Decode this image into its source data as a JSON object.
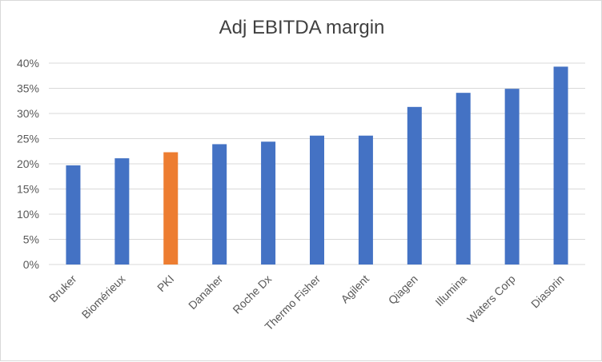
{
  "chart_data": {
    "type": "bar",
    "title": "Adj EBITDA margin",
    "xlabel": "",
    "ylabel": "",
    "categories": [
      "Bruker",
      "Biomérieux",
      "PKI",
      "Danaher",
      "Roche Dx",
      "Thermo Fisher",
      "Agilent",
      "Qiagen",
      "Illumina",
      "Waters Corp",
      "Diasorin"
    ],
    "values": [
      19.7,
      21.1,
      22.3,
      23.9,
      24.4,
      25.6,
      25.6,
      31.3,
      34.1,
      34.9,
      39.3
    ],
    "highlight_category": "PKI",
    "ylim": [
      0,
      40
    ],
    "yticks": [
      0,
      5,
      10,
      15,
      20,
      25,
      30,
      35,
      40
    ],
    "ytick_labels": [
      "0%",
      "5%",
      "10%",
      "15%",
      "20%",
      "25%",
      "30%",
      "35%",
      "40%"
    ],
    "grid": true,
    "legend": "none",
    "colors": {
      "bar": "#4472c4",
      "highlight": "#ed7d31",
      "grid": "#d9d9d9"
    }
  }
}
